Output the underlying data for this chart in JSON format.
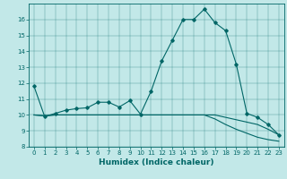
{
  "xlabel": "Humidex (Indice chaleur)",
  "bg_color": "#c2e8e8",
  "line_color": "#006666",
  "xlim": [
    -0.5,
    23.5
  ],
  "ylim": [
    8,
    17
  ],
  "yticks": [
    8,
    9,
    10,
    11,
    12,
    13,
    14,
    15,
    16
  ],
  "xticks": [
    0,
    1,
    2,
    3,
    4,
    5,
    6,
    7,
    8,
    9,
    10,
    11,
    12,
    13,
    14,
    15,
    16,
    17,
    18,
    19,
    20,
    21,
    22,
    23
  ],
  "line1_x": [
    0,
    1,
    2,
    3,
    4,
    5,
    6,
    7,
    8,
    9,
    10,
    11,
    12,
    13,
    14,
    15,
    16,
    17,
    18,
    19,
    20,
    21,
    22,
    23
  ],
  "line1_y": [
    11.8,
    9.9,
    10.1,
    10.3,
    10.4,
    10.45,
    10.8,
    10.8,
    10.5,
    10.9,
    10.05,
    11.5,
    13.4,
    14.7,
    16.0,
    16.0,
    16.65,
    15.8,
    15.3,
    13.2,
    10.1,
    9.85,
    9.4,
    8.75
  ],
  "line2_x": [
    0,
    1,
    2,
    3,
    4,
    5,
    6,
    7,
    8,
    9,
    10,
    11,
    12,
    13,
    14,
    15,
    16,
    17,
    18,
    19,
    20,
    21,
    22,
    23
  ],
  "line2_y": [
    10.0,
    9.95,
    10.0,
    10.0,
    10.0,
    10.0,
    10.0,
    10.0,
    10.0,
    10.0,
    10.0,
    10.0,
    10.0,
    10.0,
    10.0,
    10.0,
    10.0,
    10.0,
    9.85,
    9.7,
    9.55,
    9.4,
    9.1,
    8.75
  ],
  "line3_x": [
    0,
    1,
    2,
    3,
    4,
    5,
    6,
    7,
    8,
    9,
    10,
    11,
    12,
    13,
    14,
    15,
    16,
    17,
    18,
    19,
    20,
    21,
    22,
    23
  ],
  "line3_y": [
    10.0,
    9.95,
    10.0,
    10.0,
    10.0,
    10.0,
    10.0,
    10.0,
    10.0,
    10.0,
    10.0,
    10.0,
    10.0,
    10.0,
    10.0,
    10.0,
    10.0,
    9.75,
    9.4,
    9.1,
    8.85,
    8.6,
    8.45,
    8.35
  ],
  "markersize": 1.8,
  "linewidth": 0.8,
  "xlabel_fontsize": 6.5,
  "tick_fontsize": 5.0
}
